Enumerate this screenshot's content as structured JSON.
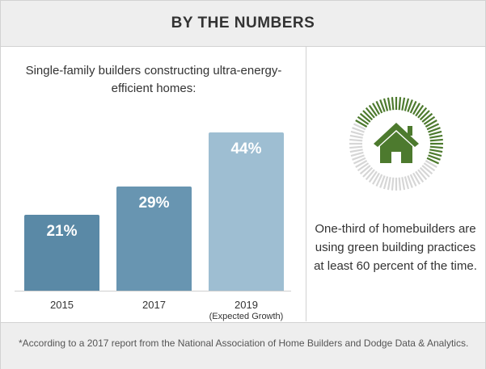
{
  "header": {
    "title": "BY THE NUMBERS"
  },
  "chart_data": {
    "type": "bar",
    "title": "Single-family builders constructing ultra-energy-efficient homes:",
    "categories": [
      "2015",
      "2017",
      "2019"
    ],
    "category_notes": [
      "",
      "",
      "(Expected Growth)"
    ],
    "values": [
      21,
      29,
      44
    ],
    "value_labels": [
      "21%",
      "29%",
      "44%"
    ],
    "ylim": [
      0,
      44
    ],
    "grid": false,
    "colors": [
      "#5a89a6",
      "#6895b1",
      "#9ebed2"
    ]
  },
  "ring": {
    "icon": "house-icon",
    "highlight_fraction": 0.333,
    "colors": {
      "highlight": "#4d7a2e",
      "rest": "#d6d6d6",
      "house": "#4d7a2e"
    },
    "text": "One-third of homebuilders are using green building practices at least 60 percent of the time."
  },
  "footer": {
    "note": "*According to a 2017 report from the National Association of Home Builders and Dodge Data & Analytics."
  }
}
